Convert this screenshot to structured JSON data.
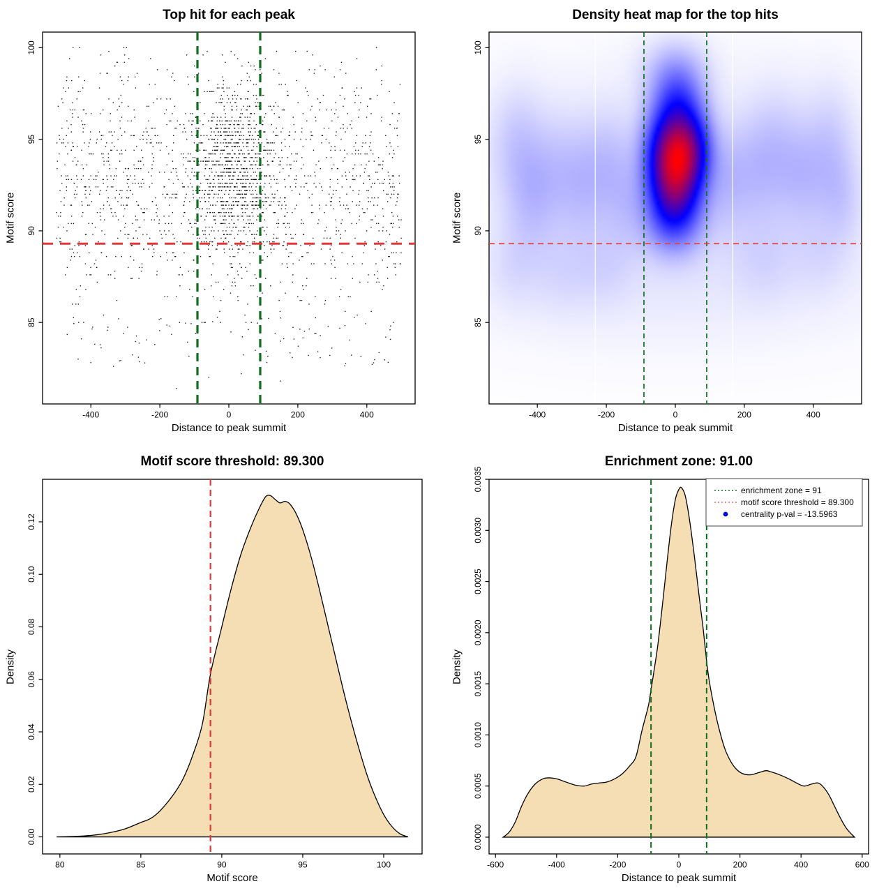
{
  "figure": {
    "description": "2x2 grid of motif enrichment diagnostic plots",
    "background": "#ffffff",
    "threshold_values": {
      "motif_score_threshold": 89.3,
      "enrichment_zone": 91,
      "centrality_p_val": -13.5963
    },
    "colors": {
      "point_black": "#000000",
      "threshold_red": "#e53535",
      "threshold_red_thin": "#e04444",
      "zone_green": "#0f6e1e",
      "density_fill": "#f5deb3",
      "curve_stroke": "#000000",
      "legend_red": "#e06666",
      "legend_blue": "#0000dd",
      "heat_palette": [
        "#ffffff",
        "#0000ff",
        "#ff0000"
      ]
    }
  },
  "chart_data": [
    {
      "type": "scatter",
      "title": "Top hit for each peak",
      "xlabel": "Distance to peak summit",
      "ylabel": "Motif score",
      "xlim": [
        -540,
        540
      ],
      "ylim": [
        80.55,
        100.85
      ],
      "xticks": [
        [
          -400,
          "-400"
        ],
        [
          -200,
          "-200"
        ],
        [
          0,
          "0"
        ],
        [
          200,
          "200"
        ],
        [
          400,
          "400"
        ]
      ],
      "yticks": [
        [
          85,
          "85"
        ],
        [
          90,
          "90"
        ],
        [
          95,
          "95"
        ],
        [
          100,
          "100"
        ]
      ],
      "grid": false,
      "vlines": [
        {
          "x": -91,
          "color": "#0f6e1e",
          "width": 3.2,
          "dash": [
            12,
            8
          ],
          "name": "enrichment-zone-left"
        },
        {
          "x": 91,
          "color": "#0f6e1e",
          "width": 3.2,
          "dash": [
            12,
            8
          ],
          "name": "enrichment-zone-right"
        }
      ],
      "hlines": [
        {
          "y": 89.3,
          "color": "#e53535",
          "width": 3,
          "dash": [
            15,
            10
          ],
          "name": "motif-score-threshold"
        }
      ],
      "generator": {
        "seed": 42,
        "point_size": 1.4,
        "y_quantum": 0.2,
        "groups": [
          {
            "n": 1500,
            "x": {
              "dist": "uniform",
              "min": -500,
              "max": 500
            },
            "y": {
              "dist": "normal",
              "mean": 92.7,
              "sd": 3.5,
              "min": 82.3,
              "max": 100.1
            }
          },
          {
            "n": 620,
            "x": {
              "dist": "normal",
              "mean": 18,
              "sd": 62,
              "min": -145,
              "max": 180
            },
            "y": {
              "dist": "normal",
              "mean": 94.1,
              "sd": 2.0,
              "min": 88.6,
              "max": 100.1
            }
          },
          {
            "n": 260,
            "x": {
              "dist": "normal",
              "mean": 8,
              "sd": 55,
              "min": -150,
              "max": 165
            },
            "y": {
              "dist": "normal",
              "mean": 91.6,
              "sd": 1.5,
              "min": 88.2,
              "max": 96.5
            }
          },
          {
            "n": 80,
            "x": {
              "dist": "uniform",
              "min": -470,
              "max": 470
            },
            "y": {
              "dist": "uniform",
              "min": 82.6,
              "max": 85.3
            }
          }
        ],
        "outliers": [
          [
            -152,
            81.4
          ],
          [
            -58,
            82.0
          ],
          [
            36,
            82.2
          ],
          [
            -262,
            83.1
          ],
          [
            258,
            83.4
          ],
          [
            150,
            81.8
          ]
        ]
      }
    },
    {
      "type": "heatmap",
      "title": "Density heat map for the top hits",
      "xlabel": "Distance to peak summit",
      "ylabel": "Motif score",
      "xlim": [
        -540,
        540
      ],
      "ylim": [
        80.55,
        100.85
      ],
      "xticks": [
        [
          -400,
          "-400"
        ],
        [
          -200,
          "-200"
        ],
        [
          0,
          "0"
        ],
        [
          200,
          "200"
        ],
        [
          400,
          "400"
        ]
      ],
      "yticks": [
        [
          85,
          "85"
        ],
        [
          90,
          "90"
        ],
        [
          95,
          "95"
        ],
        [
          100,
          "100"
        ]
      ],
      "hot_spot": {
        "x": 8,
        "y": 94.5
      },
      "white_artifact_lines_x": [
        -232,
        166
      ],
      "vlines": [
        {
          "x": -91,
          "color": "#0f6e1e",
          "width": 1.7,
          "dash": [
            7,
            5
          ],
          "name": "enrichment-zone-left"
        },
        {
          "x": 91,
          "color": "#0f6e1e",
          "width": 1.7,
          "dash": [
            7,
            5
          ],
          "name": "enrichment-zone-right"
        }
      ],
      "hlines": [
        {
          "y": 89.3,
          "color": "#e04444",
          "width": 1.7,
          "dash": [
            8,
            6
          ],
          "name": "motif-score-threshold"
        }
      ],
      "kernels": [
        [
          10,
          94.6,
          52,
          1.35,
          0.95
        ],
        [
          2,
          92.6,
          46,
          1.4,
          0.8
        ],
        [
          6,
          96.9,
          50,
          1.3,
          0.45
        ],
        [
          -2,
          90.5,
          55,
          1.3,
          0.4
        ],
        [
          0,
          98.8,
          65,
          1.2,
          0.2
        ],
        [
          -55,
          93.6,
          40,
          2.0,
          0.3
        ],
        [
          65,
          93.9,
          38,
          1.9,
          0.28
        ],
        [
          -460,
          94.8,
          55,
          2.2,
          0.13
        ],
        [
          -420,
          91.6,
          50,
          2.0,
          0.11
        ],
        [
          -340,
          93.2,
          60,
          2.2,
          0.12
        ],
        [
          -255,
          92.6,
          50,
          2.2,
          0.11
        ],
        [
          -185,
          93.9,
          45,
          2.0,
          0.1
        ],
        [
          -140,
          91.4,
          42,
          1.8,
          0.09
        ],
        [
          -470,
          88.0,
          50,
          1.6,
          0.06
        ],
        [
          -330,
          87.6,
          65,
          1.6,
          0.06
        ],
        [
          -200,
          87.9,
          55,
          1.5,
          0.055
        ],
        [
          150,
          92.7,
          40,
          1.9,
          0.11
        ],
        [
          225,
          93.4,
          50,
          2.2,
          0.11
        ],
        [
          300,
          94.3,
          55,
          2.4,
          0.12
        ],
        [
          375,
          93.0,
          50,
          2.0,
          0.11
        ],
        [
          450,
          94.6,
          50,
          2.4,
          0.12
        ],
        [
          485,
          91.7,
          42,
          1.8,
          0.09
        ],
        [
          260,
          88.2,
          65,
          1.6,
          0.06
        ],
        [
          420,
          88.5,
          55,
          1.5,
          0.055
        ],
        [
          0,
          92.5,
          520,
          4.8,
          0.08
        ],
        [
          0,
          87.2,
          520,
          2.8,
          0.04
        ]
      ]
    },
    {
      "type": "area",
      "title": "Motif score threshold: 89.300",
      "xlabel": "Motif score",
      "ylabel": "Density",
      "xlim": [
        78.93,
        102.37
      ],
      "ylim": [
        -0.0065,
        0.1362
      ],
      "xticks": [
        [
          80,
          "80"
        ],
        [
          85,
          "85"
        ],
        [
          90,
          "90"
        ],
        [
          95,
          "95"
        ],
        [
          100,
          "100"
        ]
      ],
      "yticks": [
        [
          0,
          "0.00"
        ],
        [
          0.02,
          "0.02"
        ],
        [
          0.04,
          "0.04"
        ],
        [
          0.06,
          "0.06"
        ],
        [
          0.08,
          "0.08"
        ],
        [
          0.1,
          "0.10"
        ],
        [
          0.12,
          "0.12"
        ]
      ],
      "fill": "#f5deb3",
      "vlines": [
        {
          "x": 89.3,
          "color": "#e53535",
          "width": 2.2,
          "dash": [
            9,
            6
          ],
          "name": "motif-score-threshold"
        }
      ],
      "curve": [
        [
          79.8,
          0.0
        ],
        [
          81.0,
          0.0002
        ],
        [
          82.0,
          0.0006
        ],
        [
          83.0,
          0.0015
        ],
        [
          84.0,
          0.003
        ],
        [
          85.0,
          0.0055
        ],
        [
          85.6,
          0.007
        ],
        [
          86.2,
          0.01
        ],
        [
          87.0,
          0.016
        ],
        [
          87.6,
          0.022
        ],
        [
          88.2,
          0.031
        ],
        [
          88.8,
          0.043
        ],
        [
          89.3,
          0.062
        ],
        [
          90.0,
          0.08
        ],
        [
          90.6,
          0.095
        ],
        [
          91.2,
          0.108
        ],
        [
          91.8,
          0.118
        ],
        [
          92.3,
          0.125
        ],
        [
          92.7,
          0.1295
        ],
        [
          93.0,
          0.13
        ],
        [
          93.3,
          0.1285
        ],
        [
          93.6,
          0.1272
        ],
        [
          93.9,
          0.1278
        ],
        [
          94.2,
          0.1268
        ],
        [
          94.6,
          0.123
        ],
        [
          95.0,
          0.117
        ],
        [
          95.5,
          0.107
        ],
        [
          96.0,
          0.095
        ],
        [
          96.5,
          0.082
        ],
        [
          97.0,
          0.069
        ],
        [
          97.5,
          0.056
        ],
        [
          98.0,
          0.044
        ],
        [
          98.5,
          0.033
        ],
        [
          99.0,
          0.023
        ],
        [
          99.5,
          0.015
        ],
        [
          100.0,
          0.0085
        ],
        [
          100.5,
          0.004
        ],
        [
          101.0,
          0.0012
        ],
        [
          101.5,
          0.0
        ]
      ]
    },
    {
      "type": "area",
      "title": "Enrichment zone: 91.00",
      "xlabel": "Distance to peak summit",
      "ylabel": "Density",
      "xlim": [
        -621,
        621
      ],
      "ylim": [
        -0.000164,
        0.0035
      ],
      "xticks": [
        [
          -600,
          "-600"
        ],
        [
          -400,
          "-400"
        ],
        [
          -200,
          "-200"
        ],
        [
          0,
          "0"
        ],
        [
          200,
          "200"
        ],
        [
          400,
          "400"
        ],
        [
          600,
          "600"
        ]
      ],
      "yticks": [
        [
          0,
          "0.0000"
        ],
        [
          0.0005,
          "0.0005"
        ],
        [
          0.001,
          "0.0010"
        ],
        [
          0.0015,
          "0.0015"
        ],
        [
          0.002,
          "0.0020"
        ],
        [
          0.0025,
          "0.0025"
        ],
        [
          0.003,
          "0.0030"
        ],
        [
          0.0035,
          "0.0035"
        ]
      ],
      "fill": "#f5deb3",
      "vlines": [
        {
          "x": -91,
          "color": "#0f6e1e",
          "width": 2,
          "dash": [
            8,
            5
          ],
          "name": "enrichment-zone-left"
        },
        {
          "x": 91,
          "color": "#0f6e1e",
          "width": 2,
          "dash": [
            8,
            5
          ],
          "name": "enrichment-zone-right"
        }
      ],
      "curve": [
        [
          -575,
          0.0
        ],
        [
          -555,
          5e-05
        ],
        [
          -535,
          0.00015
        ],
        [
          -515,
          0.0003
        ],
        [
          -495,
          0.00042
        ],
        [
          -470,
          0.00052
        ],
        [
          -445,
          0.00057
        ],
        [
          -425,
          0.00058
        ],
        [
          -400,
          0.00057
        ],
        [
          -370,
          0.00054
        ],
        [
          -340,
          0.00051
        ],
        [
          -310,
          0.0005
        ],
        [
          -285,
          0.00052
        ],
        [
          -260,
          0.00053
        ],
        [
          -235,
          0.00054
        ],
        [
          -210,
          0.00057
        ],
        [
          -185,
          0.00062
        ],
        [
          -160,
          0.0007
        ],
        [
          -140,
          0.00079
        ],
        [
          -120,
          0.00105
        ],
        [
          -100,
          0.00128
        ],
        [
          -91,
          0.00144
        ],
        [
          -80,
          0.00165
        ],
        [
          -70,
          0.00185
        ],
        [
          -60,
          0.0021
        ],
        [
          -50,
          0.00237
        ],
        [
          -40,
          0.00265
        ],
        [
          -30,
          0.00292
        ],
        [
          -20,
          0.00315
        ],
        [
          -10,
          0.00332
        ],
        [
          0,
          0.0034
        ],
        [
          8,
          0.00342
        ],
        [
          20,
          0.00335
        ],
        [
          30,
          0.0032
        ],
        [
          40,
          0.003
        ],
        [
          50,
          0.00277
        ],
        [
          60,
          0.00252
        ],
        [
          70,
          0.00227
        ],
        [
          80,
          0.00203
        ],
        [
          91,
          0.00172
        ],
        [
          100,
          0.00152
        ],
        [
          115,
          0.00128
        ],
        [
          130,
          0.00108
        ],
        [
          150,
          0.00087
        ],
        [
          170,
          0.00074
        ],
        [
          190,
          0.00066
        ],
        [
          210,
          0.00062
        ],
        [
          235,
          0.00061
        ],
        [
          260,
          0.00063
        ],
        [
          285,
          0.00065
        ],
        [
          300,
          0.00064
        ],
        [
          330,
          0.00061
        ],
        [
          360,
          0.00057
        ],
        [
          385,
          0.00053
        ],
        [
          410,
          0.0005
        ],
        [
          435,
          0.00052
        ],
        [
          455,
          0.00053
        ],
        [
          470,
          0.0005
        ],
        [
          490,
          0.00042
        ],
        [
          510,
          0.0003
        ],
        [
          530,
          0.00018
        ],
        [
          550,
          8e-05
        ],
        [
          575,
          0.0
        ]
      ],
      "legend": {
        "entries": [
          {
            "sample": "dotted-line",
            "color": "#0f6e1e",
            "label": "enrichment zone = 91"
          },
          {
            "sample": "dotted-line",
            "color": "#e06666",
            "label": "motif score threshold = 89.300"
          },
          {
            "sample": "point",
            "color": "#0000dd",
            "label": "centrality p-val = -13.5963"
          }
        ]
      }
    }
  ]
}
